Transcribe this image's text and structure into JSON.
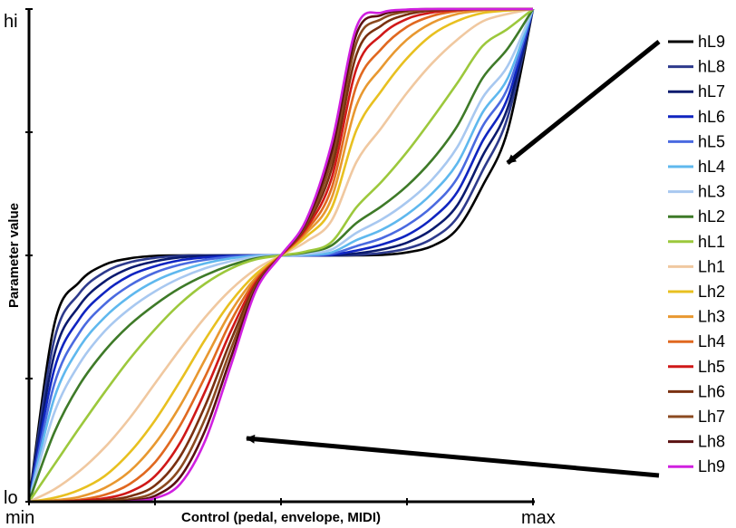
{
  "chart_data": {
    "type": "line",
    "title": "",
    "xlabel": "Control (pedal, envelope, MIDI)",
    "ylabel": "Parameter value",
    "x_ticks": [
      "min",
      "max"
    ],
    "y_ticks": [
      "lo",
      "hi"
    ],
    "xlim": [
      0,
      1
    ],
    "ylim": [
      0,
      1
    ],
    "grid": false,
    "legend": "right",
    "x": [
      0,
      0.05,
      0.1,
      0.15,
      0.2,
      0.25,
      0.3,
      0.35,
      0.4,
      0.45,
      0.5,
      0.55,
      0.6,
      0.65,
      0.7,
      0.75,
      0.8,
      0.85,
      0.9,
      0.95,
      1
    ],
    "series": [
      {
        "name": "hL9",
        "color": "#000000",
        "values": [
          0,
          0.359,
          0.446,
          0.481,
          0.494,
          0.499,
          0.5,
          0.5,
          0.5,
          0.5,
          0.5,
          0.5,
          0.5,
          0.5,
          0.501,
          0.506,
          0.519,
          0.554,
          0.641,
          0.754,
          1
        ]
      },
      {
        "name": "hL8",
        "color": "#2d3a8c",
        "values": [
          0,
          0.328,
          0.423,
          0.466,
          0.486,
          0.495,
          0.499,
          0.5,
          0.5,
          0.5,
          0.5,
          0.5,
          0.5,
          0.501,
          0.505,
          0.514,
          0.534,
          0.577,
          0.672,
          0.781,
          1
        ]
      },
      {
        "name": "hL7",
        "color": "#0a1a6e",
        "values": [
          0,
          0.298,
          0.398,
          0.447,
          0.474,
          0.488,
          0.496,
          0.499,
          0.5,
          0.5,
          0.5,
          0.5,
          0.5,
          0.504,
          0.512,
          0.526,
          0.553,
          0.602,
          0.702,
          0.8,
          1
        ]
      },
      {
        "name": "hL6",
        "color": "#1025c0",
        "values": [
          0,
          0.268,
          0.371,
          0.425,
          0.459,
          0.478,
          0.49,
          0.496,
          0.499,
          0.5,
          0.5,
          0.5,
          0.501,
          0.51,
          0.522,
          0.541,
          0.575,
          0.629,
          0.732,
          0.82,
          1
        ]
      },
      {
        "name": "hL5",
        "color": "#4a6ae0",
        "values": [
          0,
          0.238,
          0.343,
          0.401,
          0.439,
          0.465,
          0.481,
          0.491,
          0.497,
          0.5,
          0.5,
          0.5,
          0.503,
          0.519,
          0.535,
          0.561,
          0.599,
          0.657,
          0.762,
          0.84,
          1
        ]
      },
      {
        "name": "hL4",
        "color": "#5fb8ee",
        "values": [
          0,
          0.21,
          0.313,
          0.374,
          0.417,
          0.448,
          0.469,
          0.484,
          0.494,
          0.499,
          0.5,
          0.501,
          0.506,
          0.531,
          0.552,
          0.583,
          0.626,
          0.687,
          0.79,
          0.86,
          1
        ]
      },
      {
        "name": "hL3",
        "color": "#a8c8f0",
        "values": [
          0,
          0.18,
          0.28,
          0.346,
          0.392,
          0.427,
          0.454,
          0.474,
          0.488,
          0.497,
          0.5,
          0.503,
          0.512,
          0.546,
          0.573,
          0.608,
          0.654,
          0.72,
          0.82,
          0.885,
          1
        ]
      },
      {
        "name": "hL2",
        "color": "#3e7a28",
        "values": [
          0,
          0.14,
          0.237,
          0.306,
          0.359,
          0.4,
          0.434,
          0.46,
          0.48,
          0.494,
          0.5,
          0.506,
          0.52,
          0.566,
          0.6,
          0.641,
          0.694,
          0.763,
          0.86,
          0.92,
          1
        ]
      },
      {
        "name": "hL1",
        "color": "#9cc83c",
        "values": [
          0,
          0.075,
          0.15,
          0.222,
          0.29,
          0.35,
          0.402,
          0.443,
          0.473,
          0.492,
          0.5,
          0.508,
          0.527,
          0.598,
          0.65,
          0.71,
          0.778,
          0.85,
          0.925,
          0.96,
          1
        ]
      },
      {
        "name": "Lh1",
        "color": "#f0c8a0",
        "values": [
          0,
          0.025,
          0.062,
          0.11,
          0.17,
          0.24,
          0.31,
          0.375,
          0.43,
          0.472,
          0.5,
          0.528,
          0.57,
          0.69,
          0.76,
          0.83,
          0.89,
          0.938,
          0.975,
          0.99,
          1
        ]
      },
      {
        "name": "Lh2",
        "color": "#e8c020",
        "values": [
          0,
          0.008,
          0.024,
          0.052,
          0.1,
          0.165,
          0.245,
          0.33,
          0.405,
          0.462,
          0.5,
          0.538,
          0.595,
          0.755,
          0.835,
          0.9,
          0.948,
          0.976,
          0.992,
          0.997,
          1
        ]
      },
      {
        "name": "Lh3",
        "color": "#e89830",
        "values": [
          0,
          0.003,
          0.01,
          0.028,
          0.062,
          0.118,
          0.195,
          0.29,
          0.385,
          0.455,
          0.5,
          0.545,
          0.615,
          0.805,
          0.882,
          0.938,
          0.972,
          0.99,
          0.997,
          0.999,
          1
        ]
      },
      {
        "name": "Lh4",
        "color": "#e06820",
        "values": [
          0,
          0.001,
          0.004,
          0.014,
          0.036,
          0.08,
          0.155,
          0.255,
          0.365,
          0.45,
          0.5,
          0.55,
          0.635,
          0.845,
          0.92,
          0.964,
          0.986,
          0.996,
          0.999,
          1,
          1
        ]
      },
      {
        "name": "Lh5",
        "color": "#d01818",
        "values": [
          0,
          0,
          0.002,
          0.007,
          0.02,
          0.052,
          0.12,
          0.225,
          0.345,
          0.445,
          0.5,
          0.555,
          0.655,
          0.88,
          0.948,
          0.98,
          0.993,
          0.998,
          1,
          1,
          1
        ]
      },
      {
        "name": "Lh6",
        "color": "#7a3010",
        "values": [
          0,
          0,
          0.001,
          0.003,
          0.011,
          0.033,
          0.092,
          0.196,
          0.326,
          0.44,
          0.5,
          0.56,
          0.674,
          0.908,
          0.967,
          0.989,
          0.997,
          0.999,
          1,
          1,
          1
        ]
      },
      {
        "name": "Lh7",
        "color": "#8b4a20",
        "values": [
          0,
          0,
          0,
          0.001,
          0.005,
          0.02,
          0.068,
          0.17,
          0.308,
          0.436,
          0.5,
          0.564,
          0.692,
          0.932,
          0.98,
          0.995,
          0.999,
          1,
          1,
          1,
          1
        ]
      },
      {
        "name": "Lh8",
        "color": "#5a1010",
        "values": [
          0,
          0,
          0,
          0,
          0.002,
          0.012,
          0.05,
          0.146,
          0.291,
          0.432,
          0.5,
          0.568,
          0.709,
          0.95,
          0.988,
          0.998,
          1,
          1,
          1,
          1,
          1
        ]
      },
      {
        "name": "Lh9",
        "color": "#d020e0",
        "values": [
          0,
          0,
          0,
          0,
          0.001,
          0.007,
          0.036,
          0.125,
          0.275,
          0.428,
          0.5,
          0.572,
          0.725,
          0.964,
          0.993,
          0.999,
          1,
          1,
          1,
          1,
          1
        ]
      }
    ],
    "annotations": [
      {
        "type": "arrow",
        "from_series": "legend-top",
        "to_series": "hL9"
      },
      {
        "type": "arrow",
        "from_series": "legend-bottom",
        "to_series": "Lh9"
      }
    ]
  }
}
